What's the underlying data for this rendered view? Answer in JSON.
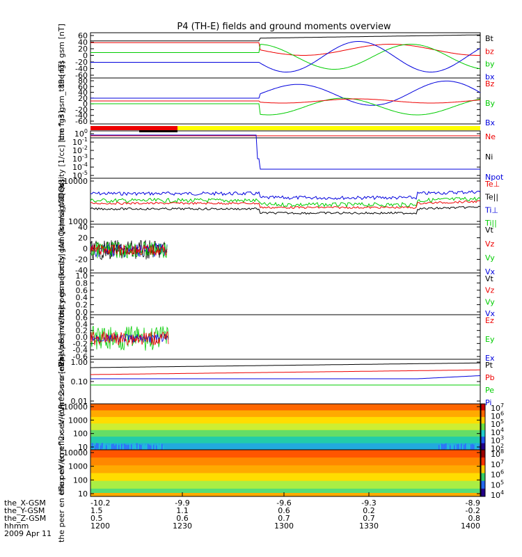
{
  "title": "P4 (TH-E) fields and ground moments overview",
  "colors": {
    "black": "#000000",
    "red": "#ee0000",
    "green": "#00cc00",
    "blue": "#0000dd",
    "yellow": "#ffff00"
  },
  "footer": {
    "rows": [
      "the_X-GSM",
      "the_Y-GSM",
      "the_Z-GSM",
      "hhmm",
      "2009 Apr 11"
    ],
    "columns": [
      [
        "-10.2",
        "1.5",
        "0.5",
        "1200"
      ],
      [
        "-9.9",
        "1.1",
        "0.6",
        "1230"
      ],
      [
        "-9.6",
        "0.6",
        "0.7",
        "1300"
      ],
      [
        "-9.3",
        "0.2",
        "0.7",
        "1330"
      ],
      [
        "-8.9",
        "-0.2",
        "0.8",
        "1400"
      ]
    ]
  },
  "chart_data": [
    {
      "type": "line",
      "ylabel": "the fgs gsm [nT]",
      "ylim": [
        -60,
        60
      ],
      "yticks": [
        "60",
        "40",
        "20",
        "0",
        "-20",
        "-40",
        "-60"
      ],
      "series": [
        {
          "name": "Bt"
        },
        {
          "name": "bz"
        },
        {
          "name": "by"
        },
        {
          "name": "bx"
        }
      ]
    },
    {
      "type": "line",
      "ylabel": "the fgs gsm_t89 [nT]",
      "ylim": [
        -80,
        80
      ],
      "yticks": [
        "80",
        "60",
        "40",
        "20",
        "0",
        "-20",
        "-40",
        "-60"
      ],
      "series": [
        {
          "name": "Bz"
        },
        {
          "name": "By"
        },
        {
          "name": "Bx"
        }
      ]
    },
    {
      "type": "line",
      "ylabel": "Density [1/cc] [cm^-3]",
      "scale": "log",
      "yticks": [
        "10^0",
        "10^-1",
        "10^-2",
        "10^-3",
        "10^-4",
        "10^-5"
      ],
      "series": [
        {
          "name": "Ne"
        },
        {
          "name": "Ni"
        },
        {
          "name": "Npot"
        }
      ]
    },
    {
      "type": "line",
      "ylabel": "magt3 [eV]",
      "scale": "log",
      "ylim": [
        1000,
        10000
      ],
      "yticks": [
        "10000",
        "1000"
      ],
      "series": [
        {
          "name": "Te⊥"
        },
        {
          "name": "Te||"
        },
        {
          "name": "Ti⊥"
        },
        {
          "name": "Ti||"
        }
      ]
    },
    {
      "type": "line",
      "ylabel": "the peir velocity gsm [km/s] (All Qs)",
      "ylim": [
        -40,
        40
      ],
      "yticks": [
        "40",
        "20",
        "0",
        "-20",
        "-40"
      ],
      "series": [
        {
          "name": "Vt"
        },
        {
          "name": "Vz"
        },
        {
          "name": "Vy"
        },
        {
          "name": "Vx"
        }
      ]
    },
    {
      "type": "line",
      "ylabel": "the peer velocity gsm [km/s] (All Qs)",
      "ylim": [
        0,
        1
      ],
      "yticks": [
        "1.0",
        "0.8",
        "0.6",
        "0.4",
        "0.2",
        "0.0"
      ],
      "series": [
        {
          "name": "Vt"
        },
        {
          "name": "Vz"
        },
        {
          "name": "Vy"
        },
        {
          "name": "Vx"
        }
      ]
    },
    {
      "type": "line",
      "ylabel": "E=-VxB [mV/m]",
      "ylim": [
        -0.6,
        0.6
      ],
      "yticks": [
        "0.6",
        "0.4",
        "0.2",
        "0.0",
        "-0.2",
        "-0.4",
        "-0.6"
      ],
      "series": [
        {
          "name": "Ez"
        },
        {
          "name": "Ey"
        },
        {
          "name": "Ex"
        }
      ]
    },
    {
      "type": "line",
      "ylabel": "Pressure [nPa]",
      "scale": "log",
      "yticks": [
        "1.00",
        "0.10",
        "0.01"
      ],
      "series": [
        {
          "name": "Pt"
        },
        {
          "name": "Pb"
        },
        {
          "name": "Pe"
        },
        {
          "name": "Pi"
        }
      ]
    },
    {
      "type": "heatmap",
      "ylabel": "the peir en eflux eV/(cm^2-s-sr-eV)",
      "scale": "log",
      "yticks": [
        "10000",
        "1000",
        "100",
        "10"
      ],
      "colorbar": [
        "10^7",
        "10^6",
        "10^5",
        "10^4",
        "10^3",
        "10^2"
      ]
    },
    {
      "type": "heatmap",
      "ylabel": "the peer en eflux eV/(cm^2-s-sr-eV)",
      "scale": "log",
      "yticks": [
        "10000",
        "1000",
        "100",
        "10"
      ],
      "colorbar": [
        "10^8",
        "10^7",
        "10^6",
        "10^5",
        "10^4"
      ]
    }
  ]
}
